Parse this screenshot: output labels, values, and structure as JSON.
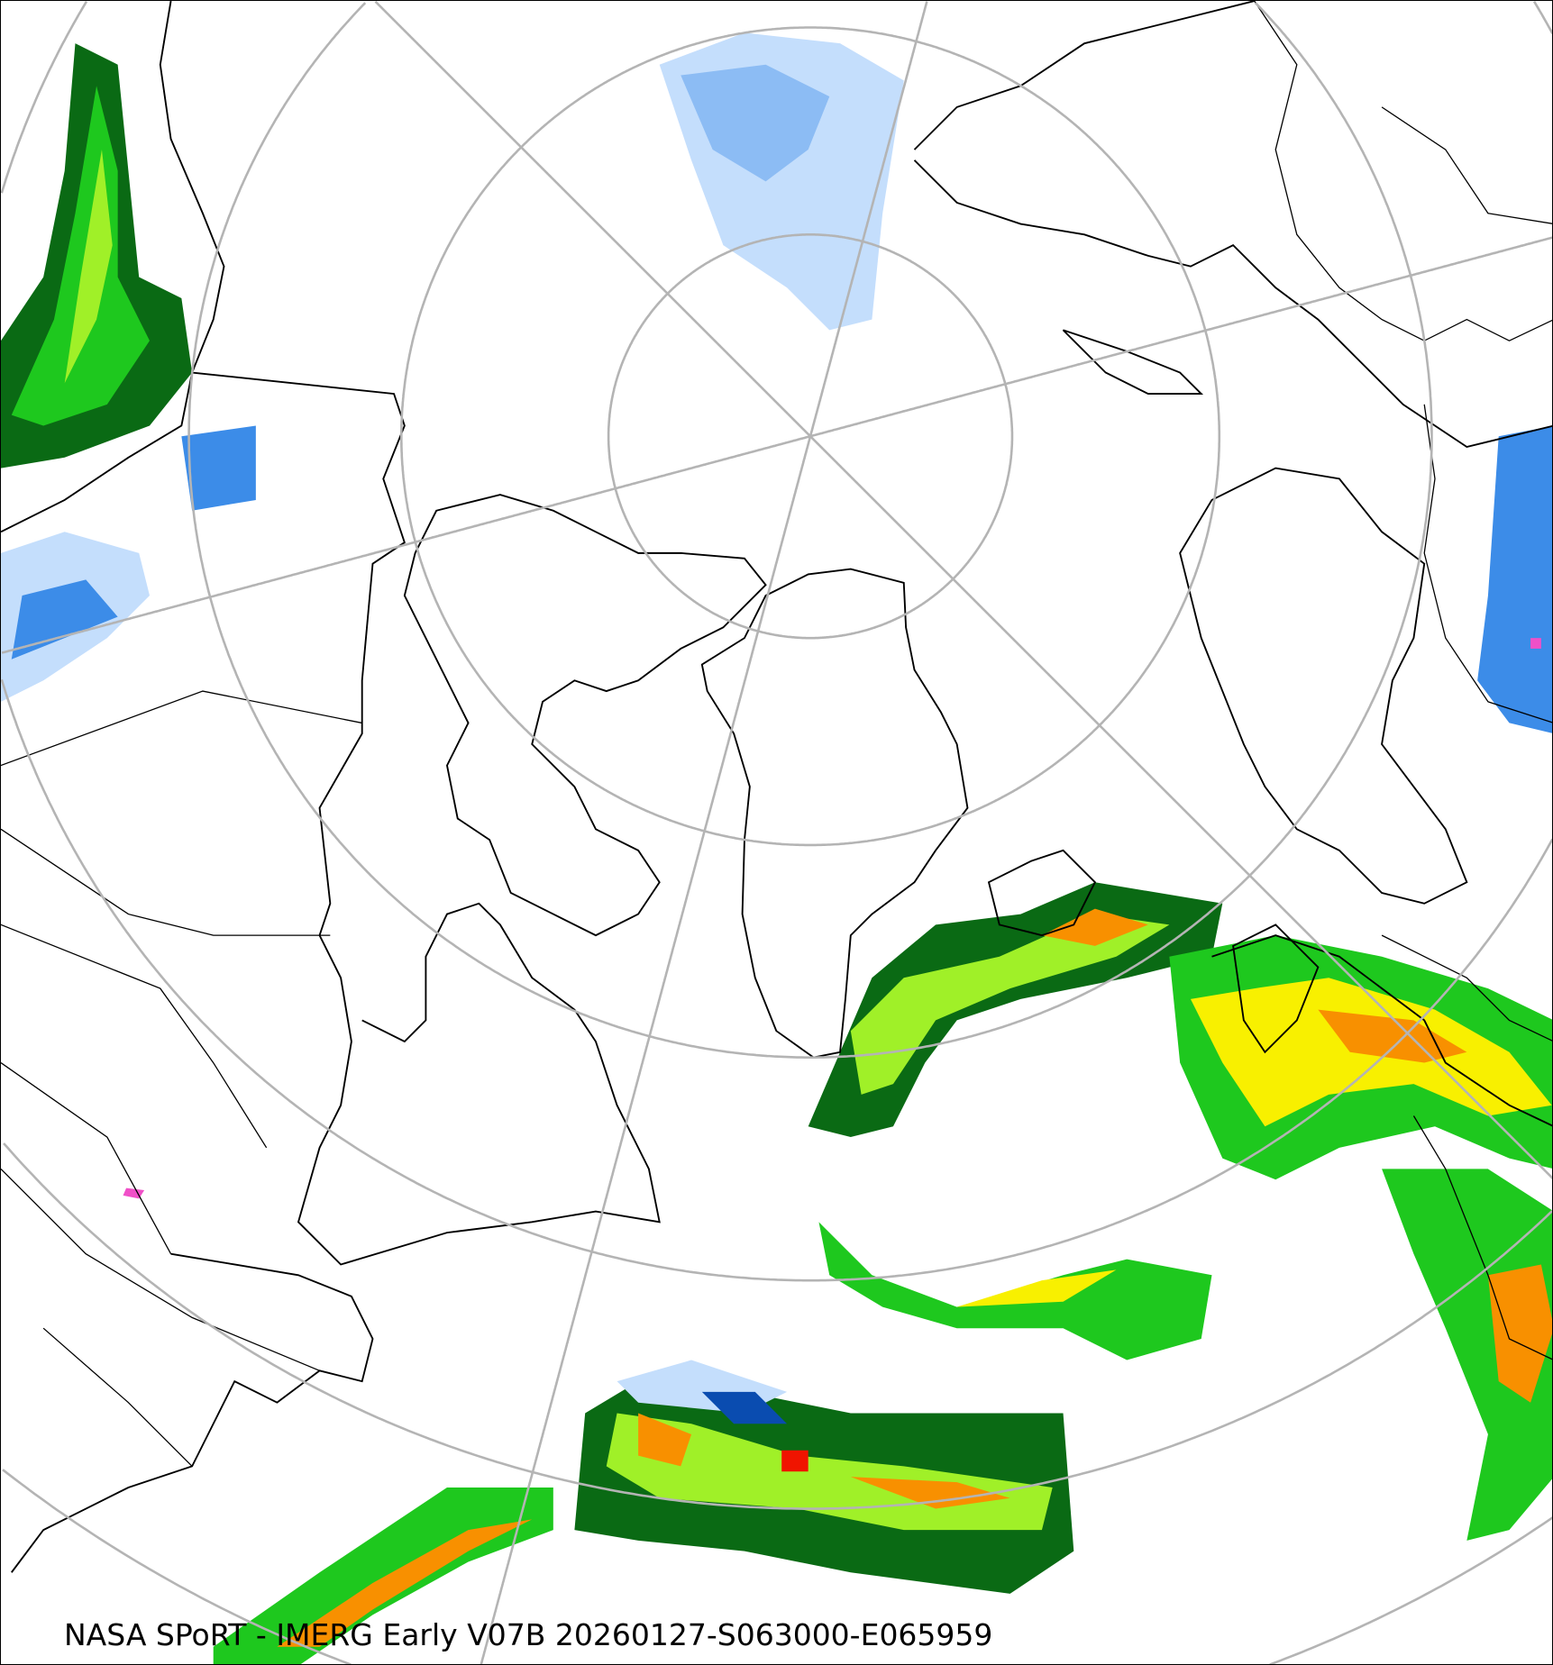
{
  "map": {
    "projection": "north-polar-stereographic",
    "caption": "NASA SPoRT - IMERG Early V07B 20260127-S063000-E065959",
    "colors": {
      "graticule": "#b4b4b4",
      "coastline": "#000000",
      "precip_light_blue": "#c4defc",
      "precip_blue": "#8cbcf4",
      "precip_mid_blue": "#3c8ce8",
      "precip_dark_blue": "#0a4cb0",
      "precip_dark_green": "#0a6a14",
      "precip_green": "#1ec81e",
      "precip_light_green": "#a0f028",
      "precip_yellow": "#f8f000",
      "precip_orange": "#f89000",
      "precip_red": "#f01400",
      "precip_magenta": "#f050c8"
    }
  }
}
